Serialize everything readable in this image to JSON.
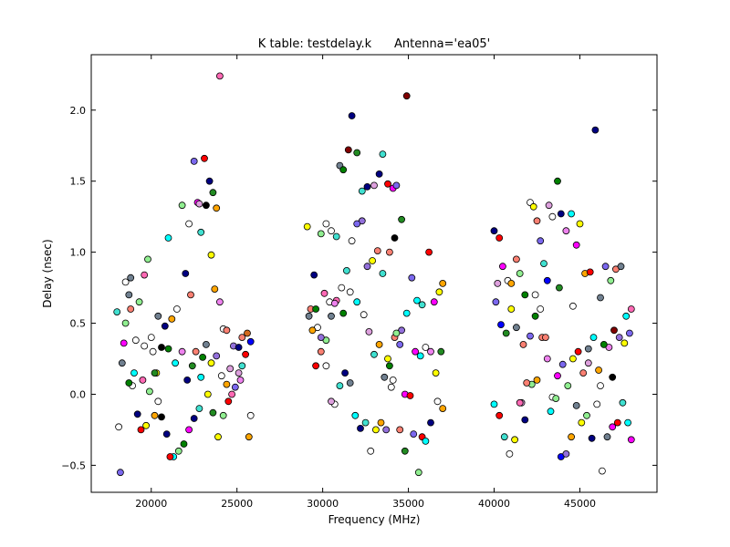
{
  "chart_data": {
    "type": "scatter",
    "title": "K table: testdelay.k      Antenna='ea05'",
    "xlabel": "Frequency (MHz)",
    "ylabel": "Delay (nsec)",
    "xlim": [
      16500,
      49500
    ],
    "ylim": [
      -0.69,
      2.39
    ],
    "xticks": [
      20000,
      25000,
      30000,
      35000,
      40000,
      45000
    ],
    "xtick_labels": [
      "20000",
      "25000",
      "30000",
      "35000",
      "40000",
      "45000"
    ],
    "yticks": [
      -0.5,
      0.0,
      0.5,
      1.0,
      1.5,
      2.0
    ],
    "ytick_labels": [
      "−0.5",
      "0.0",
      "0.5",
      "1.0",
      "1.5",
      "2.0"
    ],
    "grid": false,
    "legend": "none",
    "palette": [
      "#000080",
      "#ff0000",
      "#008000",
      "#ffff00",
      "#00ffff",
      "#ff00ff",
      "#ffa500",
      "#9370db",
      "#fa8072",
      "#ffffff",
      "#40e0d0",
      "#ee82ee",
      "#708090",
      "#dda0dd",
      "#ff69b4",
      "#7b68ee",
      "#90ee90",
      "#800000",
      "#000000",
      "#0000ff",
      "#228b22",
      "#8fbc8f",
      "#d2691e",
      "#4682b4"
    ],
    "points": [
      [
        18200,
        -0.55,
        15
      ],
      [
        18100,
        -0.23,
        9
      ],
      [
        18300,
        0.22,
        12
      ],
      [
        18500,
        0.79,
        9
      ],
      [
        18800,
        0.82,
        12
      ],
      [
        19100,
        0.38,
        9
      ],
      [
        19300,
        0.65,
        16
      ],
      [
        19600,
        0.34,
        9
      ],
      [
        19800,
        0.95,
        16
      ],
      [
        20100,
        0.3,
        9
      ],
      [
        20400,
        0.55,
        12
      ],
      [
        20600,
        0.33,
        18
      ],
      [
        21000,
        1.1,
        4
      ],
      [
        21200,
        0.53,
        6
      ],
      [
        21500,
        0.6,
        9
      ],
      [
        22000,
        0.85,
        0
      ],
      [
        22300,
        0.7,
        8
      ],
      [
        22500,
        1.64,
        15
      ],
      [
        22700,
        1.35,
        5
      ],
      [
        22900,
        1.14,
        10
      ],
      [
        23100,
        1.66,
        1
      ],
      [
        23400,
        1.5,
        0
      ],
      [
        23600,
        1.42,
        20
      ],
      [
        23800,
        1.31,
        6
      ],
      [
        24000,
        2.24,
        14
      ],
      [
        24200,
        0.46,
        9
      ],
      [
        24400,
        0.45,
        8
      ],
      [
        24800,
        0.34,
        7
      ],
      [
        25100,
        0.33,
        0
      ],
      [
        25300,
        0.4,
        8
      ],
      [
        25600,
        0.43,
        22
      ],
      [
        25800,
        -0.15,
        9
      ],
      [
        25700,
        -0.3,
        6
      ],
      [
        25300,
        0.2,
        10
      ],
      [
        25100,
        0.15,
        13
      ],
      [
        24700,
        0.0,
        14
      ],
      [
        24500,
        -0.05,
        1
      ],
      [
        24200,
        -0.15,
        16
      ],
      [
        23900,
        -0.3,
        3
      ],
      [
        23600,
        -0.13,
        20
      ],
      [
        23300,
        0.0,
        3
      ],
      [
        23000,
        0.26,
        2
      ],
      [
        22800,
        -0.1,
        10
      ],
      [
        22500,
        -0.17,
        0
      ],
      [
        22200,
        -0.25,
        5
      ],
      [
        21900,
        -0.35,
        2
      ],
      [
        21600,
        -0.4,
        16
      ],
      [
        21300,
        -0.44,
        4
      ],
      [
        21100,
        -0.44,
        1
      ],
      [
        20900,
        -0.28,
        0
      ],
      [
        20600,
        -0.16,
        18
      ],
      [
        20400,
        -0.05,
        9
      ],
      [
        20200,
        -0.15,
        6
      ],
      [
        19900,
        0.02,
        16
      ],
      [
        19700,
        -0.22,
        3
      ],
      [
        19400,
        -0.25,
        1
      ],
      [
        19200,
        -0.14,
        0
      ],
      [
        18900,
        0.06,
        9
      ],
      [
        18700,
        0.08,
        2
      ],
      [
        18500,
        0.5,
        16
      ],
      [
        18800,
        0.6,
        8
      ],
      [
        19000,
        0.15,
        4
      ],
      [
        19500,
        0.1,
        14
      ],
      [
        20000,
        0.4,
        9
      ],
      [
        20300,
        0.15,
        3
      ],
      [
        20800,
        0.48,
        0
      ],
      [
        21000,
        0.32,
        2
      ],
      [
        21400,
        0.22,
        4
      ],
      [
        21800,
        0.3,
        11
      ],
      [
        22100,
        0.1,
        0
      ],
      [
        22400,
        0.2,
        20
      ],
      [
        22600,
        0.3,
        8
      ],
      [
        22900,
        0.12,
        4
      ],
      [
        23200,
        0.35,
        12
      ],
      [
        23500,
        0.22,
        3
      ],
      [
        23800,
        0.27,
        7
      ],
      [
        24100,
        0.13,
        9
      ],
      [
        24400,
        0.07,
        6
      ],
      [
        24600,
        0.18,
        13
      ],
      [
        24900,
        0.05,
        15
      ],
      [
        25200,
        0.1,
        11
      ],
      [
        25500,
        0.28,
        1
      ],
      [
        25800,
        0.37,
        19
      ],
      [
        21800,
        1.33,
        16
      ],
      [
        22200,
        1.2,
        9
      ],
      [
        22800,
        1.34,
        13
      ],
      [
        23200,
        1.33,
        18
      ],
      [
        23500,
        0.98,
        3
      ],
      [
        23700,
        0.74,
        6
      ],
      [
        24000,
        0.65,
        11
      ],
      [
        18000,
        0.58,
        10
      ],
      [
        18400,
        0.36,
        5
      ],
      [
        18700,
        0.7,
        12
      ],
      [
        19600,
        0.84,
        14
      ],
      [
        20200,
        0.15,
        20
      ],
      [
        29100,
        1.18,
        3
      ],
      [
        29300,
        0.6,
        8
      ],
      [
        29500,
        0.84,
        0
      ],
      [
        29700,
        0.47,
        9
      ],
      [
        29900,
        1.13,
        16
      ],
      [
        30200,
        1.2,
        9
      ],
      [
        30500,
        1.15,
        9
      ],
      [
        30800,
        1.11,
        10
      ],
      [
        31000,
        1.61,
        12
      ],
      [
        31200,
        1.58,
        2
      ],
      [
        31500,
        1.72,
        17
      ],
      [
        31700,
        1.96,
        0
      ],
      [
        32000,
        1.7,
        20
      ],
      [
        32300,
        1.43,
        10
      ],
      [
        32600,
        1.46,
        0
      ],
      [
        33000,
        1.47,
        13
      ],
      [
        33300,
        1.55,
        0
      ],
      [
        33500,
        1.69,
        10
      ],
      [
        33800,
        1.48,
        1
      ],
      [
        34100,
        1.45,
        5
      ],
      [
        34300,
        1.47,
        15
      ],
      [
        34900,
        2.1,
        17
      ],
      [
        34600,
        1.23,
        20
      ],
      [
        34200,
        1.1,
        18
      ],
      [
        33900,
        1.0,
        8
      ],
      [
        33500,
        0.85,
        10
      ],
      [
        33200,
        1.01,
        8
      ],
      [
        32900,
        0.94,
        3
      ],
      [
        32600,
        0.9,
        7
      ],
      [
        32300,
        1.22,
        7
      ],
      [
        32000,
        1.2,
        15
      ],
      [
        31700,
        1.08,
        9
      ],
      [
        31400,
        0.87,
        10
      ],
      [
        31100,
        0.75,
        9
      ],
      [
        30800,
        0.66,
        14
      ],
      [
        30500,
        0.55,
        12
      ],
      [
        30200,
        0.38,
        16
      ],
      [
        29900,
        0.3,
        8
      ],
      [
        29600,
        0.2,
        1
      ],
      [
        29400,
        0.45,
        6
      ],
      [
        30100,
        0.71,
        14
      ],
      [
        30400,
        0.65,
        9
      ],
      [
        30700,
        0.64,
        11
      ],
      [
        31200,
        0.57,
        2
      ],
      [
        31600,
        0.72,
        9
      ],
      [
        32000,
        0.65,
        4
      ],
      [
        32400,
        0.56,
        9
      ],
      [
        32700,
        0.44,
        13
      ],
      [
        33000,
        0.28,
        10
      ],
      [
        33300,
        0.35,
        6
      ],
      [
        33600,
        0.12,
        12
      ],
      [
        33900,
        0.2,
        2
      ],
      [
        34200,
        0.4,
        8
      ],
      [
        34500,
        0.35,
        15
      ],
      [
        34800,
        0.0,
        5
      ],
      [
        35100,
        -0.01,
        1
      ],
      [
        35400,
        0.3,
        5
      ],
      [
        35700,
        0.27,
        4
      ],
      [
        36000,
        0.33,
        9
      ],
      [
        36300,
        0.3,
        11
      ],
      [
        36600,
        0.15,
        3
      ],
      [
        36900,
        0.3,
        20
      ],
      [
        37000,
        0.78,
        6
      ],
      [
        36800,
        0.72,
        3
      ],
      [
        36500,
        0.65,
        5
      ],
      [
        36200,
        1.0,
        1
      ],
      [
        35800,
        0.63,
        10
      ],
      [
        35500,
        0.66,
        4
      ],
      [
        35200,
        0.82,
        15
      ],
      [
        34900,
        0.57,
        4
      ],
      [
        34600,
        0.45,
        7
      ],
      [
        34300,
        0.43,
        16
      ],
      [
        34000,
        0.05,
        9
      ],
      [
        33700,
        -0.25,
        7
      ],
      [
        33400,
        -0.2,
        6
      ],
      [
        33100,
        -0.25,
        3
      ],
      [
        32800,
        -0.4,
        9
      ],
      [
        32500,
        -0.2,
        10
      ],
      [
        32200,
        -0.24,
        0
      ],
      [
        31900,
        -0.15,
        4
      ],
      [
        31600,
        0.08,
        12
      ],
      [
        31300,
        0.15,
        0
      ],
      [
        31000,
        0.06,
        10
      ],
      [
        30700,
        -0.07,
        9
      ],
      [
        30500,
        -0.05,
        13
      ],
      [
        30200,
        0.2,
        9
      ],
      [
        29900,
        0.4,
        7
      ],
      [
        29600,
        0.6,
        2
      ],
      [
        29200,
        0.55,
        12
      ],
      [
        35600,
        -0.55,
        16
      ],
      [
        35800,
        -0.3,
        1
      ],
      [
        36000,
        -0.33,
        4
      ],
      [
        36300,
        -0.2,
        0
      ],
      [
        36700,
        -0.05,
        9
      ],
      [
        37000,
        -0.1,
        6
      ],
      [
        35300,
        -0.28,
        15
      ],
      [
        34800,
        -0.4,
        20
      ],
      [
        34500,
        -0.25,
        8
      ],
      [
        34100,
        0.1,
        9
      ],
      [
        33800,
        0.25,
        3
      ],
      [
        40000,
        1.15,
        0
      ],
      [
        40300,
        1.1,
        1
      ],
      [
        40500,
        0.9,
        5
      ],
      [
        40800,
        0.8,
        9
      ],
      [
        41000,
        0.78,
        6
      ],
      [
        41300,
        0.95,
        8
      ],
      [
        41500,
        0.85,
        16
      ],
      [
        41800,
        0.7,
        2
      ],
      [
        42100,
        1.35,
        9
      ],
      [
        42300,
        1.32,
        3
      ],
      [
        42500,
        1.22,
        8
      ],
      [
        42700,
        1.08,
        15
      ],
      [
        42900,
        0.92,
        10
      ],
      [
        43200,
        1.33,
        13
      ],
      [
        43400,
        1.25,
        9
      ],
      [
        43700,
        1.5,
        2
      ],
      [
        43900,
        1.27,
        0
      ],
      [
        44200,
        1.15,
        11
      ],
      [
        44500,
        1.27,
        4
      ],
      [
        44800,
        1.05,
        5
      ],
      [
        45000,
        1.2,
        3
      ],
      [
        45300,
        0.85,
        6
      ],
      [
        45600,
        0.86,
        1
      ],
      [
        45900,
        1.86,
        0
      ],
      [
        46200,
        0.68,
        12
      ],
      [
        46500,
        0.9,
        15
      ],
      [
        46800,
        0.8,
        16
      ],
      [
        47100,
        0.88,
        8
      ],
      [
        47400,
        0.9,
        12
      ],
      [
        47700,
        0.55,
        4
      ],
      [
        48000,
        0.6,
        14
      ],
      [
        47900,
        0.43,
        15
      ],
      [
        47600,
        0.36,
        3
      ],
      [
        47300,
        0.4,
        7
      ],
      [
        47000,
        0.45,
        17
      ],
      [
        46700,
        0.33,
        11
      ],
      [
        46400,
        0.35,
        2
      ],
      [
        46100,
        0.17,
        6
      ],
      [
        45800,
        0.4,
        4
      ],
      [
        45500,
        0.22,
        13
      ],
      [
        45200,
        0.15,
        8
      ],
      [
        44900,
        0.3,
        1
      ],
      [
        44600,
        0.25,
        3
      ],
      [
        44300,
        0.06,
        16
      ],
      [
        44000,
        0.21,
        15
      ],
      [
        43700,
        0.13,
        5
      ],
      [
        43400,
        -0.02,
        9
      ],
      [
        43100,
        0.25,
        11
      ],
      [
        42800,
        0.4,
        8
      ],
      [
        42500,
        0.1,
        6
      ],
      [
        42200,
        0.07,
        16
      ],
      [
        41900,
        0.08,
        8
      ],
      [
        41600,
        -0.06,
        13
      ],
      [
        41300,
        0.47,
        12
      ],
      [
        41000,
        0.6,
        3
      ],
      [
        40700,
        0.43,
        20
      ],
      [
        40400,
        0.49,
        19
      ],
      [
        40100,
        0.65,
        15
      ],
      [
        40000,
        -0.07,
        4
      ],
      [
        40300,
        -0.15,
        1
      ],
      [
        40600,
        -0.3,
        10
      ],
      [
        40900,
        -0.42,
        9
      ],
      [
        41200,
        -0.32,
        3
      ],
      [
        41500,
        -0.06,
        14
      ],
      [
        41800,
        -0.18,
        0
      ],
      [
        42100,
        0.41,
        15
      ],
      [
        42400,
        0.55,
        2
      ],
      [
        42700,
        0.6,
        9
      ],
      [
        43000,
        0.4,
        8
      ],
      [
        43300,
        -0.12,
        4
      ],
      [
        43600,
        -0.03,
        16
      ],
      [
        43900,
        -0.44,
        19
      ],
      [
        44200,
        -0.42,
        7
      ],
      [
        44500,
        -0.3,
        6
      ],
      [
        44800,
        -0.08,
        12
      ],
      [
        45100,
        -0.2,
        3
      ],
      [
        45400,
        -0.15,
        16
      ],
      [
        45700,
        -0.31,
        0
      ],
      [
        46000,
        -0.07,
        9
      ],
      [
        46300,
        -0.54,
        9
      ],
      [
        46600,
        -0.3,
        12
      ],
      [
        46900,
        -0.23,
        5
      ],
      [
        47200,
        -0.2,
        1
      ],
      [
        47500,
        -0.06,
        10
      ],
      [
        47800,
        -0.2,
        4
      ],
      [
        48000,
        -0.32,
        5
      ],
      [
        46900,
        0.12,
        18
      ],
      [
        46200,
        0.06,
        9
      ],
      [
        45500,
        0.32,
        12
      ],
      [
        44600,
        0.62,
        9
      ],
      [
        43800,
        0.75,
        20
      ],
      [
        43100,
        0.8,
        19
      ],
      [
        42400,
        0.7,
        9
      ],
      [
        41700,
        0.35,
        8
      ],
      [
        40200,
        0.78,
        13
      ]
    ]
  }
}
